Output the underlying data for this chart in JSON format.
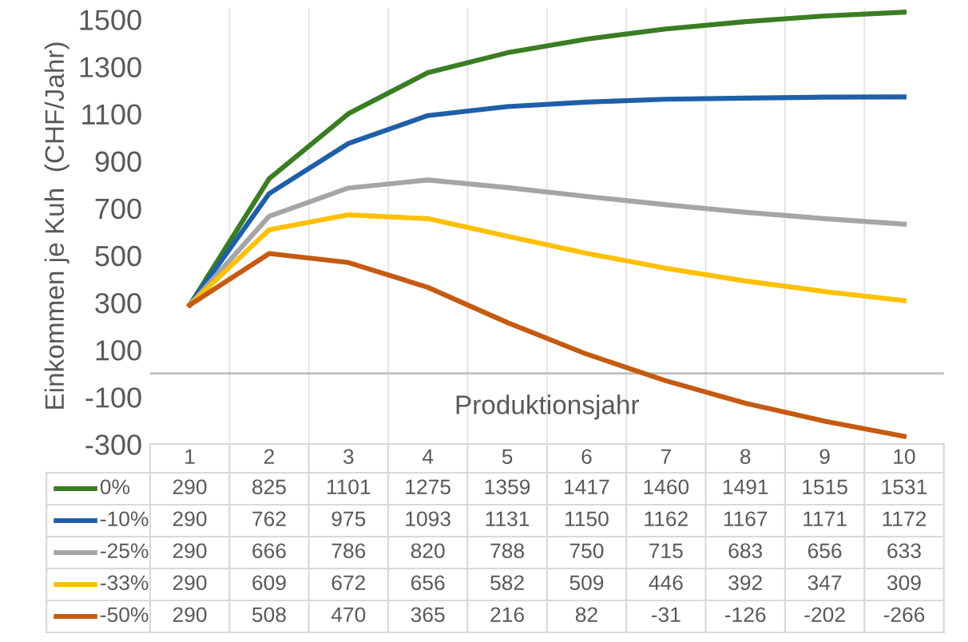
{
  "chart_data": {
    "type": "line",
    "ylabel": "Einkommen je Kuh  (CHF/Jahr)",
    "xlabel": "Produktionsjahr",
    "categories": [
      "1",
      "2",
      "3",
      "4",
      "5",
      "6",
      "7",
      "8",
      "9",
      "10"
    ],
    "series": [
      {
        "name": "0%",
        "color": "#3a7d22",
        "values": [
          290,
          825,
          1101,
          1275,
          1359,
          1417,
          1460,
          1491,
          1515,
          1531
        ]
      },
      {
        "name": "-10%",
        "color": "#1f5fa8",
        "values": [
          290,
          762,
          975,
          1093,
          1131,
          1150,
          1162,
          1167,
          1171,
          1172
        ]
      },
      {
        "name": "-25%",
        "color": "#a5a5a5",
        "values": [
          290,
          666,
          786,
          820,
          788,
          750,
          715,
          683,
          656,
          633
        ]
      },
      {
        "name": "-33%",
        "color": "#ffc000",
        "values": [
          290,
          609,
          672,
          656,
          582,
          509,
          446,
          392,
          347,
          309
        ]
      },
      {
        "name": "-50%",
        "color": "#c55a11",
        "values": [
          290,
          508,
          470,
          365,
          216,
          82,
          -31,
          -126,
          -202,
          -266
        ]
      }
    ],
    "ylim": [
      -300,
      1550
    ],
    "yticks": [
      -300,
      -100,
      100,
      300,
      500,
      700,
      900,
      1100,
      1300,
      1500
    ],
    "ref_lines": [
      {
        "axis": "y",
        "value": 0,
        "color": "#bfbfbf"
      }
    ],
    "grid": "x",
    "data_labels": true,
    "legend": "bottom left",
    "marker": "none",
    "line_style": "solid"
  }
}
